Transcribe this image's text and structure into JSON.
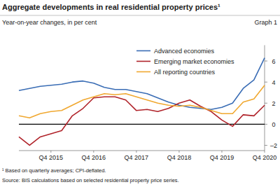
{
  "chart_data": {
    "type": "line",
    "title": "Aggregate developments in real residential property prices¹",
    "subtitle": "Year-on-year changes, in per cent",
    "annotations": [
      "Graph 1",
      "¹ Based on quarterly averages; CPI-deflated.",
      "Source: BIS calculations based on selected residential property price series."
    ],
    "categories": [
      null,
      null,
      null,
      "Q4 2015",
      null,
      null,
      null,
      "Q4 2016",
      null,
      null,
      null,
      "Q4 2017",
      null,
      null,
      null,
      "Q4 2018",
      null,
      null,
      null,
      "Q4 2019",
      null,
      null,
      null,
      "Q4 2020"
    ],
    "series": [
      {
        "name": "Advanced economies",
        "color": "#3a6db5",
        "values": [
          3.2,
          3.4,
          3.6,
          3.7,
          3.8,
          4.0,
          4.1,
          3.9,
          3.5,
          3.3,
          3.3,
          3.1,
          2.9,
          2.5,
          2.1,
          1.8,
          1.6,
          1.5,
          1.4,
          1.6,
          2.0,
          3.4,
          4.2,
          6.3
        ]
      },
      {
        "name": "Emerging market economies",
        "color": "#b0232a",
        "values": [
          -1.2,
          -2.0,
          -1.2,
          -0.9,
          -0.6,
          0.8,
          1.5,
          2.5,
          2.6,
          2.6,
          2.3,
          1.3,
          1.4,
          1.2,
          1.5,
          2.0,
          2.3,
          1.7,
          1.2,
          0.4,
          -0.2,
          0.9,
          0.8,
          1.8
        ]
      },
      {
        "name": "All reporting countries",
        "color": "#f0a830",
        "values": [
          0.8,
          0.6,
          1.0,
          1.2,
          1.3,
          1.8,
          2.3,
          2.6,
          2.9,
          2.8,
          2.9,
          2.6,
          2.3,
          2.0,
          1.8,
          1.7,
          1.8,
          1.6,
          1.3,
          1.0,
          1.0,
          2.1,
          2.4,
          3.7
        ]
      }
    ],
    "ylim": [
      -2.5,
      7.5
    ],
    "yticks": [
      {
        "value": -2,
        "label": "–2"
      },
      0,
      2,
      4,
      6
    ],
    "grid": false,
    "legend": "top-center"
  }
}
